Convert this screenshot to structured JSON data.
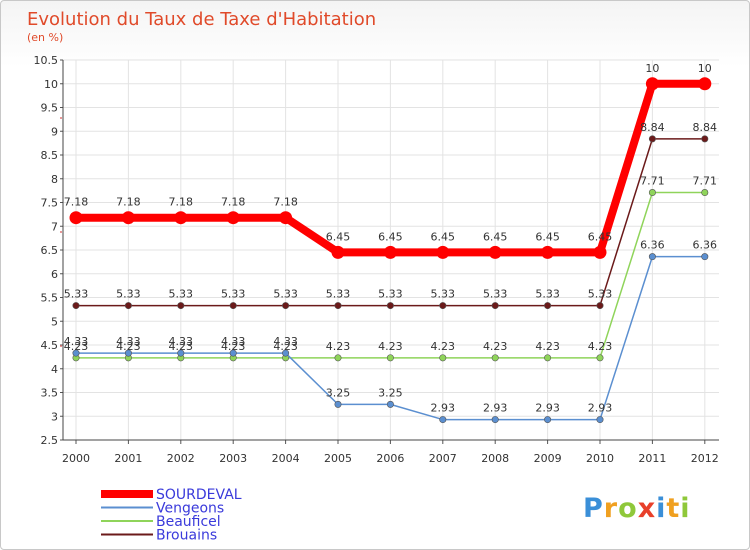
{
  "chart_data": {
    "type": "line",
    "title": "Evolution du Taux de Taxe d'Habitation",
    "subtitle": "(en %)",
    "xlabel": "",
    "ylabel": "",
    "categories": [
      "2000",
      "2001",
      "2002",
      "2003",
      "2004",
      "2005",
      "2006",
      "2007",
      "2008",
      "2009",
      "2010",
      "2011",
      "2012"
    ],
    "ylim": [
      2.5,
      10.5
    ],
    "yticks": [
      2.5,
      3,
      3.5,
      4,
      4.5,
      5,
      5.5,
      6,
      6.5,
      7,
      7.5,
      8,
      8.5,
      9,
      9.5,
      10,
      10.5
    ],
    "ytick_labels": [
      "2.5",
      "3",
      "3.5",
      "4",
      "4.5",
      "5",
      "5.5",
      "6",
      "6.5",
      "7",
      "7.5",
      "8",
      "8.5",
      "9",
      "9.5",
      "10",
      "10.5"
    ],
    "grid": true,
    "legend_position": "bottom-left",
    "series": [
      {
        "name": "Brouains",
        "color": "#6b1a1a",
        "values": [
          5.33,
          5.33,
          5.33,
          5.33,
          5.33,
          5.33,
          5.33,
          5.33,
          5.33,
          5.33,
          5.33,
          8.84,
          8.84
        ],
        "labels": [
          "5.33",
          "5.33",
          "5.33",
          "5.33",
          "5.33",
          "5.33",
          "5.33",
          "5.33",
          "5.33",
          "5.33",
          "5.33",
          "8.84",
          "8.84"
        ]
      },
      {
        "name": "Beauficel",
        "color": "#8fd45a",
        "values": [
          4.23,
          4.23,
          4.23,
          4.23,
          4.23,
          4.23,
          4.23,
          4.23,
          4.23,
          4.23,
          4.23,
          7.71,
          7.71
        ],
        "labels": [
          "4.23",
          "4.23",
          "4.23",
          "4.23",
          "4.23",
          "4.23",
          "4.23",
          "4.23",
          "4.23",
          "4.23",
          "4.23",
          "7.71",
          "7.71"
        ]
      },
      {
        "name": "Vengeons",
        "color": "#5b8fd0",
        "values": [
          4.33,
          4.33,
          4.33,
          4.33,
          4.33,
          3.25,
          3.25,
          2.93,
          2.93,
          2.93,
          2.93,
          6.36,
          6.36
        ],
        "labels": [
          "4.33",
          "4.33",
          "4.33",
          "4.33",
          "4.33",
          "3.25",
          "3.25",
          "2.93",
          "2.93",
          "2.93",
          "2.93",
          "6.36",
          "6.36"
        ]
      },
      {
        "name": "SOURDEVAL",
        "color": "#ff0000",
        "values": [
          7.18,
          7.18,
          7.18,
          7.18,
          7.18,
          6.45,
          6.45,
          6.45,
          6.45,
          6.45,
          6.45,
          10,
          10
        ],
        "labels": [
          "7.18",
          "7.18",
          "7.18",
          "7.18",
          "7.18",
          "6.45",
          "6.45",
          "6.45",
          "6.45",
          "6.45",
          "6.45",
          "10",
          "10"
        ]
      }
    ],
    "legend": [
      "SOURDEVAL",
      "Vengeons",
      "Beauficel",
      "Brouains"
    ]
  },
  "logo": {
    "letters": [
      "P",
      "r",
      "o",
      "x",
      "i",
      "t",
      "i"
    ],
    "colors": [
      "#3a8fd8",
      "#f0a020",
      "#8fc83a",
      "#e8402a",
      "#3a8fd8",
      "#f0a020",
      "#8fc83a"
    ]
  }
}
